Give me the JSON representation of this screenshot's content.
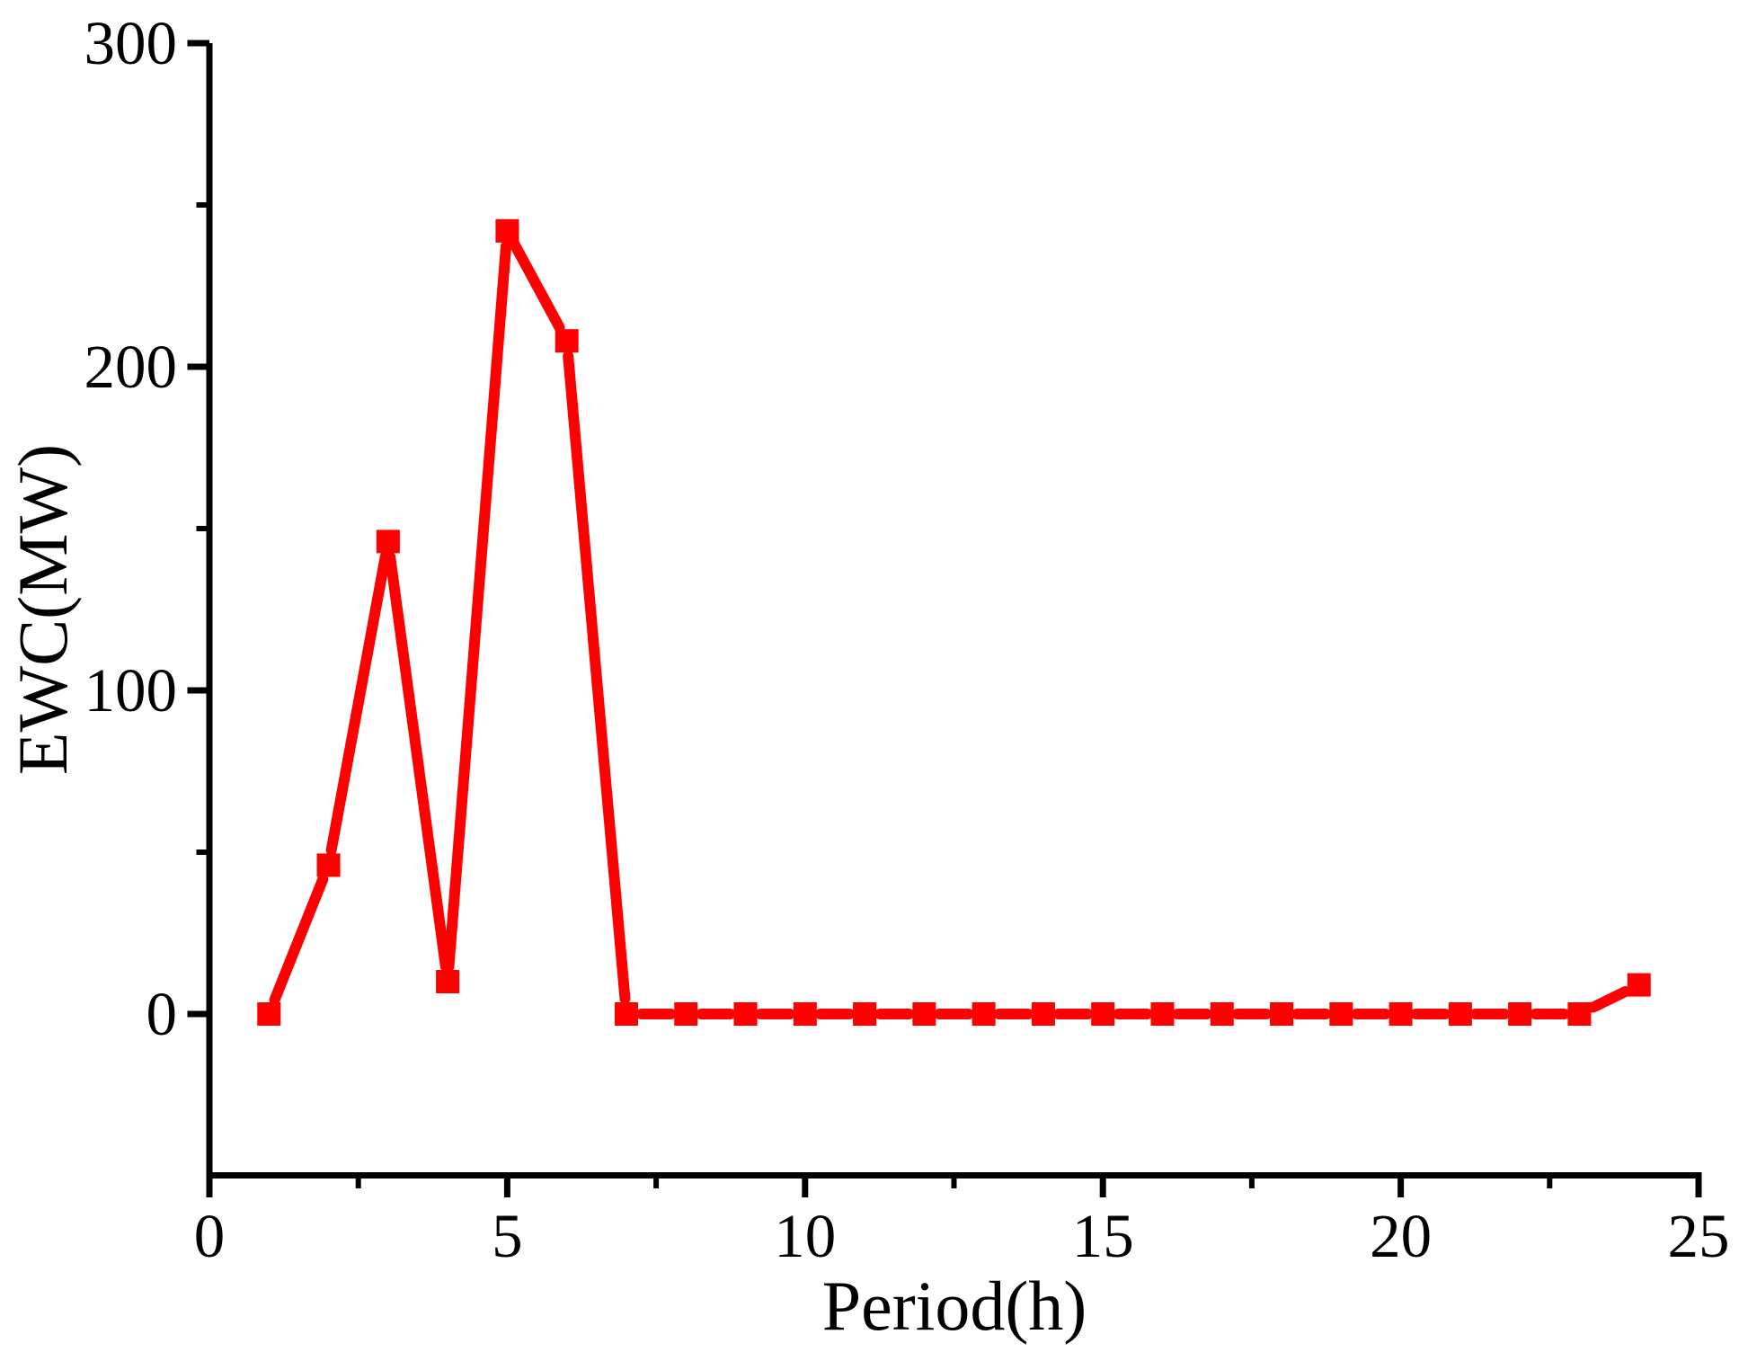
{
  "chart_data": {
    "type": "line",
    "title": "",
    "xlabel": "Period(h)",
    "ylabel": "EWC(MW)",
    "x": [
      1,
      2,
      3,
      4,
      5,
      6,
      7,
      8,
      9,
      10,
      11,
      12,
      13,
      14,
      15,
      16,
      17,
      18,
      19,
      20,
      21,
      22,
      23,
      24
    ],
    "y": [
      0,
      46,
      146,
      10,
      242,
      208,
      0,
      0,
      0,
      0,
      0,
      0,
      0,
      0,
      0,
      0,
      0,
      0,
      0,
      0,
      0,
      0,
      0,
      9
    ],
    "xlim": [
      0,
      25
    ],
    "ylim": [
      -50,
      300
    ],
    "xticks": [
      0,
      5,
      10,
      15,
      20,
      25
    ],
    "yticks": [
      0,
      100,
      200,
      300
    ],
    "x_minor_ticks": [
      2.5,
      7.5,
      12.5,
      17.5,
      22.5
    ],
    "y_minor_ticks": [
      50,
      150,
      250
    ],
    "grid": false,
    "legend": "none",
    "background_color": "#FFFFFF",
    "axis_color": "#000000",
    "series": [
      {
        "name": "EWC",
        "color": "#FF0000",
        "marker": "square",
        "line_style": "solid with gaps around symbols"
      }
    ]
  }
}
